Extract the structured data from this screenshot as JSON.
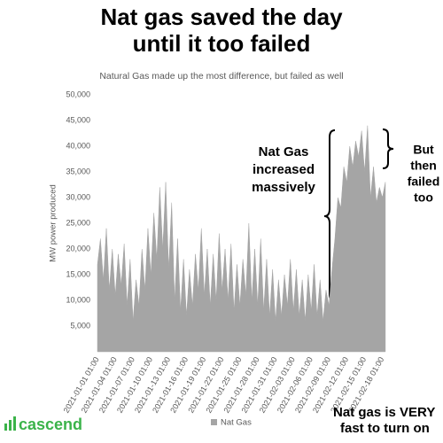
{
  "chart_data": {
    "type": "area",
    "title_lines": [
      "Nat gas saved the day",
      "until it too failed"
    ],
    "subtitle": "Natural Gas made up the most difference, but failed as well",
    "y_label": "MW power produced",
    "categories": [
      "2021-01-01 01:00",
      null,
      null,
      null,
      null,
      null,
      "2021-01-04 01:00",
      null,
      null,
      null,
      null,
      null,
      "2021-01-07 01:00",
      null,
      null,
      null,
      null,
      null,
      "2021-01-10 01:00",
      null,
      null,
      null,
      null,
      null,
      "2021-01-13 01:00",
      null,
      null,
      null,
      null,
      null,
      "2021-01-16 01:00",
      null,
      null,
      null,
      null,
      null,
      "2021-01-19 01:00",
      null,
      null,
      null,
      null,
      null,
      "2021-01-22 01:00",
      null,
      null,
      null,
      null,
      null,
      "2021-01-25 01:00",
      null,
      null,
      null,
      null,
      null,
      "2021-01-28 01:00",
      null,
      null,
      null,
      null,
      null,
      "2021-01-31 01:00",
      null,
      null,
      null,
      null,
      null,
      "2021-02-03 01:00",
      null,
      null,
      null,
      null,
      null,
      "2021-02-06 01:00",
      null,
      null,
      null,
      null,
      null,
      "2021-02-09 01:00",
      null,
      null,
      null,
      null,
      null,
      "2021-02-12 01:00",
      null,
      null,
      null,
      null,
      null,
      "2021-02-15 01:00",
      null,
      null,
      null,
      null,
      null,
      "2021-02-18 01:00",
      null
    ],
    "series": [
      {
        "name": "Nat Gas",
        "color": "#a5a5a5",
        "values": [
          17000,
          22000,
          14000,
          24000,
          12000,
          20000,
          11000,
          19000,
          13000,
          21000,
          9000,
          18000,
          6000,
          14000,
          9000,
          20000,
          12000,
          24000,
          15000,
          27000,
          18000,
          32000,
          20000,
          33000,
          16000,
          29000,
          10000,
          22000,
          8000,
          18000,
          7000,
          16000,
          9000,
          19000,
          12000,
          24000,
          11000,
          20000,
          9000,
          19000,
          10000,
          23000,
          12000,
          20000,
          10000,
          21000,
          8000,
          17000,
          9000,
          18000,
          11000,
          25000,
          10000,
          20000,
          9000,
          22000,
          8000,
          18000,
          7000,
          16000,
          6000,
          14000,
          7000,
          15000,
          9000,
          18000,
          8000,
          16000,
          7000,
          14000,
          6000,
          15000,
          8000,
          17000,
          7000,
          14000,
          6000,
          12000,
          9000,
          16000,
          22000,
          30000,
          28000,
          36000,
          33000,
          40000,
          36000,
          41000,
          38000,
          43000,
          35000,
          44000,
          30000,
          36000,
          29000,
          32000,
          30000,
          33000
        ]
      }
    ],
    "ylim": [
      0,
      50000
    ],
    "yticks": [
      {
        "value": 5000,
        "label": "5,000"
      },
      {
        "value": 10000,
        "label": "10,000"
      },
      {
        "value": 15000,
        "label": "15,000"
      },
      {
        "value": 20000,
        "label": "20,000"
      },
      {
        "value": 25000,
        "label": "25,000"
      },
      {
        "value": 30000,
        "label": "30,000"
      },
      {
        "value": 35000,
        "label": "35,000"
      },
      {
        "value": 40000,
        "label": "40,000"
      },
      {
        "value": 45000,
        "label": "45,000"
      },
      {
        "value": 50000,
        "label": "50,000"
      }
    ],
    "grid": false,
    "legend": "bottom",
    "annotations": [
      {
        "lines": [
          "Nat Gas",
          "increased",
          "massively"
        ]
      },
      {
        "lines": [
          "But",
          "then",
          "failed",
          "too"
        ]
      },
      {
        "lines": [
          "Nat gas is VERY",
          "fast to turn on"
        ]
      }
    ],
    "logo": "cascend"
  }
}
